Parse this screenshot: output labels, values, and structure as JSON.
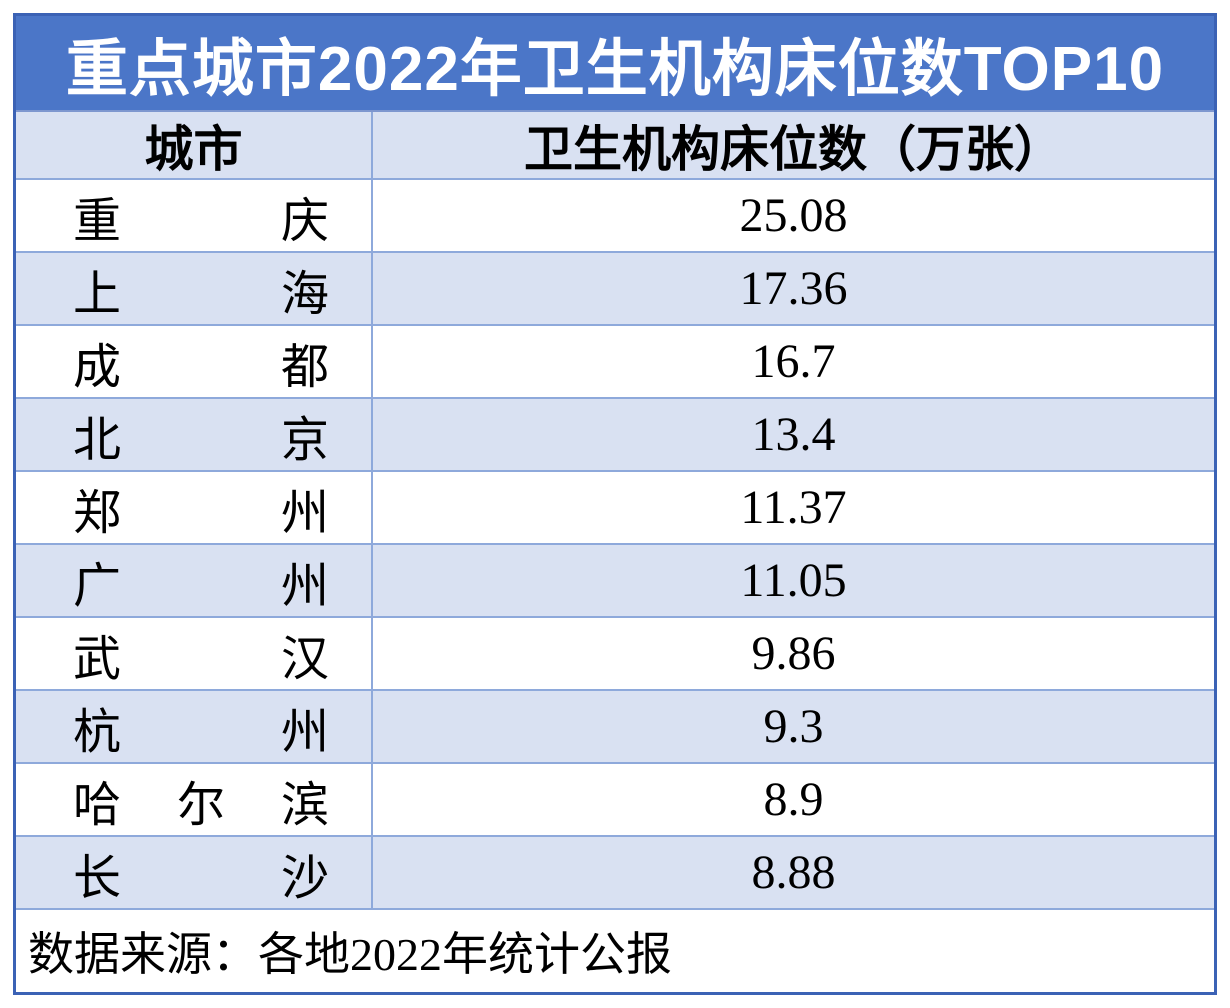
{
  "title": "重点城市2022年卫生机构床位数TOP10",
  "table": {
    "columns": [
      "城市",
      "卫生机构床位数（万张）"
    ],
    "rows": [
      {
        "city": "重庆",
        "value": "25.08"
      },
      {
        "city": "上海",
        "value": "17.36"
      },
      {
        "city": "成都",
        "value": "16.7"
      },
      {
        "city": "北京",
        "value": "13.4"
      },
      {
        "city": "郑州",
        "value": "11.37"
      },
      {
        "city": "广州",
        "value": "11.05"
      },
      {
        "city": "武汉",
        "value": "9.86"
      },
      {
        "city": "杭州",
        "value": "9.3"
      },
      {
        "city": "哈尔滨",
        "value": "8.9"
      },
      {
        "city": "长沙",
        "value": "8.88"
      }
    ]
  },
  "footer": "数据来源：各地2022年统计公报",
  "colors": {
    "title_bg": "#4b76c8",
    "band_bg": "#d9e1f2",
    "gridline": "#8ea9db",
    "outer_border": "#3b62b5",
    "title_text": "#ffffff",
    "body_text": "#000000"
  },
  "chart_data": {
    "type": "table",
    "title": "重点城市2022年卫生机构床位数TOP10",
    "columns": [
      "城市",
      "卫生机构床位数（万张）"
    ],
    "rows": [
      [
        "重庆",
        25.08
      ],
      [
        "上海",
        17.36
      ],
      [
        "成都",
        16.7
      ],
      [
        "北京",
        13.4
      ],
      [
        "郑州",
        11.37
      ],
      [
        "广州",
        11.05
      ],
      [
        "武汉",
        9.86
      ],
      [
        "杭州",
        9.3
      ],
      [
        "哈尔滨",
        8.9
      ],
      [
        "长沙",
        8.88
      ]
    ],
    "source": "数据来源：各地2022年统计公报",
    "layout": {
      "banding": "alternate rows light blue",
      "values_align": "center",
      "city_align": "distributed"
    }
  }
}
